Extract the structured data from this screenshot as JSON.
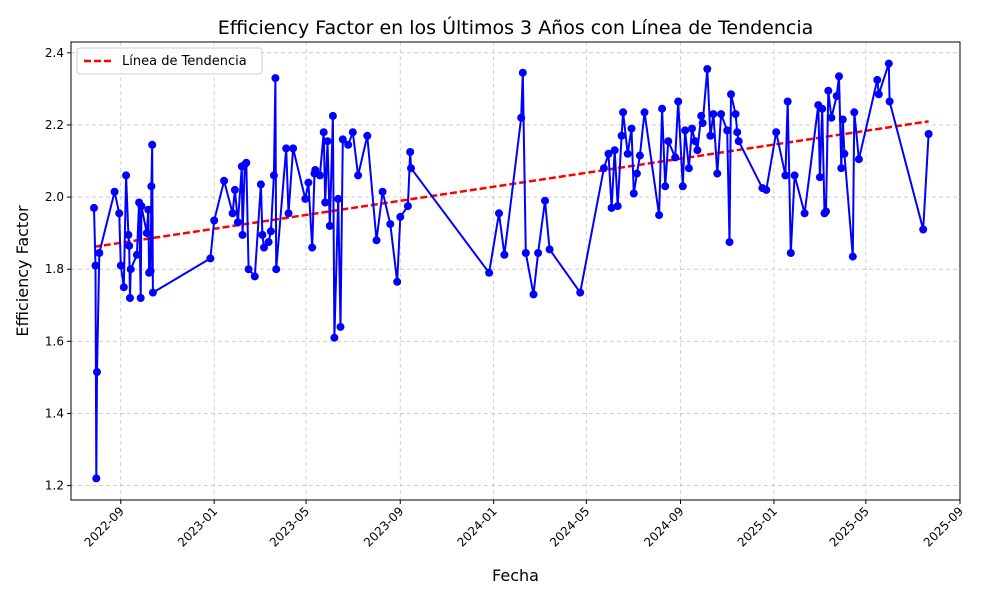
{
  "chart_data": {
    "type": "line",
    "title": "Efficiency Factor en los Últimos 3 Años con Línea de Tendencia",
    "xlabel": "Fecha",
    "ylabel": "Efficiency Factor",
    "x_axis_type": "date",
    "xlim": [
      "2022-06-28",
      "2025-09-01"
    ],
    "ylim": [
      1.16,
      2.43
    ],
    "x_ticks": [
      "2022-09",
      "2023-01",
      "2023-05",
      "2023-09",
      "2024-01",
      "2024-05",
      "2024-09",
      "2025-01",
      "2025-05",
      "2025-09"
    ],
    "y_ticks": [
      1.2,
      1.4,
      1.6,
      1.8,
      2.0,
      2.2,
      2.4
    ],
    "y_tick_labels": [
      "1.2",
      "1.4",
      "1.6",
      "1.8",
      "2.0",
      "2.2",
      "2.4"
    ],
    "grid": true,
    "legend_position": "top-left",
    "colors": {
      "series": "#0000ff",
      "trend": "#ff0000"
    },
    "series": [
      {
        "marker": "circle",
        "style": "solid",
        "points": [
          [
            "2022-07-28",
            1.97
          ],
          [
            "2022-07-30",
            1.81
          ],
          [
            "2022-07-31",
            1.22
          ],
          [
            "2022-08-01",
            1.515
          ],
          [
            "2022-08-04",
            1.845
          ],
          [
            "2022-08-24",
            2.015
          ],
          [
            "2022-08-30",
            1.955
          ],
          [
            "2022-09-01",
            1.81
          ],
          [
            "2022-09-05",
            1.75
          ],
          [
            "2022-09-08",
            2.06
          ],
          [
            "2022-09-11",
            1.895
          ],
          [
            "2022-09-12",
            1.865
          ],
          [
            "2022-09-13",
            1.72
          ],
          [
            "2022-09-14",
            1.8
          ],
          [
            "2022-09-22",
            1.84
          ],
          [
            "2022-09-25",
            1.985
          ],
          [
            "2022-09-27",
            1.72
          ],
          [
            "2022-09-28",
            1.975
          ],
          [
            "2022-10-05",
            1.9
          ],
          [
            "2022-10-07",
            1.965
          ],
          [
            "2022-10-08",
            1.79
          ],
          [
            "2022-10-10",
            1.795
          ],
          [
            "2022-10-11",
            2.03
          ],
          [
            "2022-10-12",
            2.145
          ],
          [
            "2022-10-13",
            1.735
          ],
          [
            "2022-12-27",
            1.83
          ],
          [
            "2023-01-01",
            1.935
          ],
          [
            "2023-01-14",
            2.045
          ],
          [
            "2023-01-25",
            1.955
          ],
          [
            "2023-01-28",
            2.02
          ],
          [
            "2023-02-01",
            1.93
          ],
          [
            "2023-02-06",
            2.085
          ],
          [
            "2023-02-07",
            1.895
          ],
          [
            "2023-02-10",
            2.09
          ],
          [
            "2023-02-12",
            2.095
          ],
          [
            "2023-02-15",
            1.8
          ],
          [
            "2023-02-23",
            1.78
          ],
          [
            "2023-03-03",
            2.035
          ],
          [
            "2023-03-05",
            1.895
          ],
          [
            "2023-03-07",
            1.86
          ],
          [
            "2023-03-13",
            1.875
          ],
          [
            "2023-03-16",
            1.905
          ],
          [
            "2023-03-20",
            2.06
          ],
          [
            "2023-03-22",
            2.33
          ],
          [
            "2023-03-23",
            1.8
          ],
          [
            "2023-04-05",
            2.135
          ],
          [
            "2023-04-08",
            1.955
          ],
          [
            "2023-04-14",
            2.135
          ],
          [
            "2023-04-30",
            1.995
          ],
          [
            "2023-05-04",
            2.04
          ],
          [
            "2023-05-09",
            1.86
          ],
          [
            "2023-05-12",
            2.065
          ],
          [
            "2023-05-13",
            2.075
          ],
          [
            "2023-05-19",
            2.06
          ],
          [
            "2023-05-24",
            2.18
          ],
          [
            "2023-05-26",
            1.985
          ],
          [
            "2023-05-29",
            2.155
          ],
          [
            "2023-06-01",
            1.92
          ],
          [
            "2023-06-05",
            2.225
          ],
          [
            "2023-06-07",
            1.61
          ],
          [
            "2023-06-12",
            1.995
          ],
          [
            "2023-06-15",
            1.64
          ],
          [
            "2023-06-18",
            2.16
          ],
          [
            "2023-06-25",
            2.145
          ],
          [
            "2023-07-01",
            2.18
          ],
          [
            "2023-07-08",
            2.06
          ],
          [
            "2023-07-20",
            2.17
          ],
          [
            "2023-08-01",
            1.88
          ],
          [
            "2023-08-09",
            2.015
          ],
          [
            "2023-08-19",
            1.925
          ],
          [
            "2023-08-28",
            1.765
          ],
          [
            "2023-09-01",
            1.945
          ],
          [
            "2023-09-11",
            1.975
          ],
          [
            "2023-09-14",
            2.125
          ],
          [
            "2023-09-15",
            2.08
          ],
          [
            "2023-12-26",
            1.79
          ],
          [
            "2024-01-08",
            1.955
          ],
          [
            "2024-01-15",
            1.84
          ],
          [
            "2024-02-06",
            2.22
          ],
          [
            "2024-02-08",
            2.345
          ],
          [
            "2024-02-12",
            1.845
          ],
          [
            "2024-02-22",
            1.73
          ],
          [
            "2024-02-28",
            1.845
          ],
          [
            "2024-03-08",
            1.99
          ],
          [
            "2024-03-14",
            1.855
          ],
          [
            "2024-04-23",
            1.735
          ],
          [
            "2024-05-24",
            2.08
          ],
          [
            "2024-05-30",
            2.12
          ],
          [
            "2024-06-03",
            1.97
          ],
          [
            "2024-06-07",
            2.13
          ],
          [
            "2024-06-11",
            1.975
          ],
          [
            "2024-06-16",
            2.17
          ],
          [
            "2024-06-18",
            2.235
          ],
          [
            "2024-06-24",
            2.12
          ],
          [
            "2024-06-29",
            2.19
          ],
          [
            "2024-07-02",
            2.01
          ],
          [
            "2024-07-06",
            2.065
          ],
          [
            "2024-07-10",
            2.115
          ],
          [
            "2024-07-16",
            2.235
          ],
          [
            "2024-08-04",
            1.95
          ],
          [
            "2024-08-08",
            2.245
          ],
          [
            "2024-08-12",
            2.03
          ],
          [
            "2024-08-16",
            2.155
          ],
          [
            "2024-08-25",
            2.11
          ],
          [
            "2024-08-29",
            2.265
          ],
          [
            "2024-09-04",
            2.03
          ],
          [
            "2024-09-07",
            2.185
          ],
          [
            "2024-09-12",
            2.08
          ],
          [
            "2024-09-16",
            2.19
          ],
          [
            "2024-09-20",
            2.155
          ],
          [
            "2024-09-23",
            2.13
          ],
          [
            "2024-09-28",
            2.225
          ],
          [
            "2024-09-30",
            2.205
          ],
          [
            "2024-10-06",
            2.355
          ],
          [
            "2024-10-10",
            2.17
          ],
          [
            "2024-10-14",
            2.23
          ],
          [
            "2024-10-19",
            2.065
          ],
          [
            "2024-10-24",
            2.23
          ],
          [
            "2024-11-01",
            2.185
          ],
          [
            "2024-11-04",
            1.875
          ],
          [
            "2024-11-06",
            2.285
          ],
          [
            "2024-11-12",
            2.23
          ],
          [
            "2024-11-14",
            2.18
          ],
          [
            "2024-11-16",
            2.155
          ],
          [
            "2024-12-17",
            2.025
          ],
          [
            "2024-12-22",
            2.02
          ],
          [
            "2025-01-04",
            2.18
          ],
          [
            "2025-01-16",
            2.06
          ],
          [
            "2025-01-19",
            2.265
          ],
          [
            "2025-01-23",
            1.845
          ],
          [
            "2025-01-28",
            2.06
          ],
          [
            "2025-02-10",
            1.955
          ],
          [
            "2025-02-28",
            2.255
          ],
          [
            "2025-03-02",
            2.055
          ],
          [
            "2025-03-05",
            2.245
          ],
          [
            "2025-03-08",
            1.955
          ],
          [
            "2025-03-10",
            1.96
          ],
          [
            "2025-03-13",
            2.295
          ],
          [
            "2025-03-17",
            2.22
          ],
          [
            "2025-03-24",
            2.28
          ],
          [
            "2025-03-27",
            2.335
          ],
          [
            "2025-03-30",
            2.08
          ],
          [
            "2025-04-01",
            2.215
          ],
          [
            "2025-04-03",
            2.12
          ],
          [
            "2025-04-14",
            1.835
          ],
          [
            "2025-04-16",
            2.235
          ],
          [
            "2025-04-22",
            2.105
          ],
          [
            "2025-05-16",
            2.325
          ],
          [
            "2025-05-18",
            2.285
          ],
          [
            "2025-05-31",
            2.37
          ],
          [
            "2025-06-01",
            2.265
          ],
          [
            "2025-07-15",
            1.91
          ],
          [
            "2025-07-22",
            2.175
          ]
        ]
      }
    ],
    "trend_line": {
      "name": "Línea de Tendencia",
      "style": "dashed",
      "start": [
        "2022-07-28",
        1.862
      ],
      "end": [
        "2025-07-22",
        2.21
      ]
    }
  }
}
